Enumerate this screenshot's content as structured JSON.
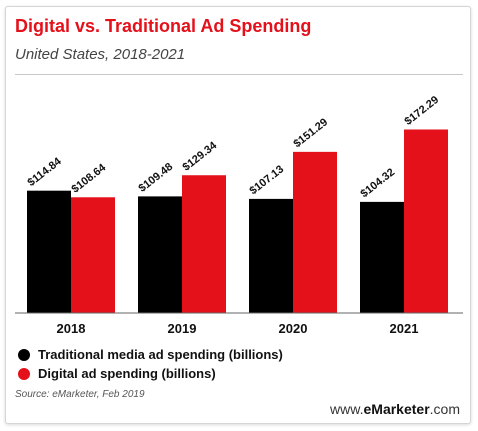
{
  "header": {
    "title": "Digital vs. Traditional Ad Spending",
    "subtitle": "United States, 2018-2021"
  },
  "legend": {
    "traditional": "Traditional media ad spending (billions)",
    "digital": "Digital ad spending (billions)"
  },
  "footer": {
    "source": "Source: eMarketer, Feb 2019",
    "brand_prefix": "www.",
    "brand_name": "eMarketer",
    "brand_suffix": ".com"
  },
  "colors": {
    "traditional": "#000000",
    "digital": "#e4111b",
    "accent": "#e4111b"
  },
  "chart_data": {
    "type": "bar",
    "categories": [
      "2018",
      "2019",
      "2020",
      "2021"
    ],
    "series": [
      {
        "name": "Traditional media ad spending (billions)",
        "values": [
          114.84,
          109.48,
          107.13,
          104.32
        ],
        "labels": [
          "$114.84",
          "$109.48",
          "$107.13",
          "$104.32"
        ]
      },
      {
        "name": "Digital ad spending (billions)",
        "values": [
          108.64,
          129.34,
          151.29,
          172.29
        ],
        "labels": [
          "$108.64",
          "$129.34",
          "$151.29",
          "$172.29"
        ]
      }
    ],
    "ylim": [
      0,
      215
    ],
    "grid": false,
    "legend_position": "bottom-left"
  }
}
